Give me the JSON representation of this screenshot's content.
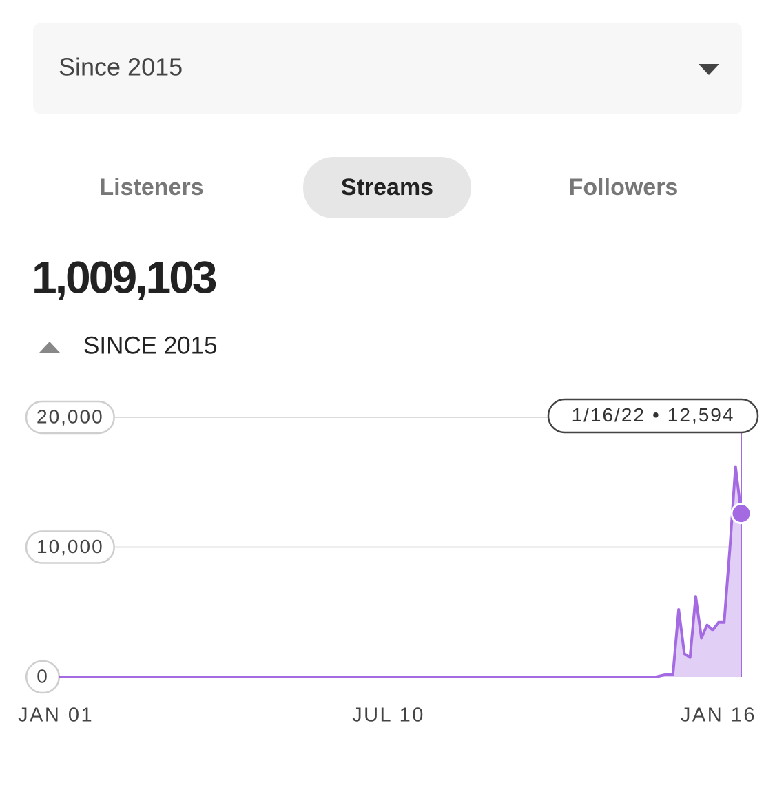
{
  "dropdown": {
    "label": "Since 2015"
  },
  "tabs": [
    "Listeners",
    "Streams",
    "Followers"
  ],
  "total": "1,009,103",
  "change_label": "SINCE 2015",
  "chart_data": {
    "type": "line",
    "color": "#a46ae2",
    "fill_color": "#e2cff6",
    "categories": [
      "JAN 01",
      null,
      null,
      null,
      null,
      null,
      null,
      null,
      null,
      null,
      null,
      null,
      null,
      null,
      null,
      null,
      null,
      null,
      null,
      null,
      null,
      null,
      null,
      null,
      null,
      null,
      null,
      null,
      null,
      null,
      null,
      null,
      null,
      null,
      null,
      null,
      null,
      null,
      null,
      null,
      null,
      null,
      null,
      null,
      null,
      null,
      null,
      null,
      null,
      null,
      null,
      null,
      null,
      null,
      null,
      null,
      null,
      null,
      "JUL 10",
      null,
      null,
      null,
      null,
      null,
      null,
      null,
      null,
      null,
      null,
      null,
      null,
      null,
      null,
      null,
      null,
      null,
      null,
      null,
      null,
      null,
      null,
      null,
      null,
      null,
      null,
      null,
      null,
      null,
      null,
      null,
      null,
      null,
      null,
      null,
      null,
      null,
      null,
      null,
      null,
      null,
      null,
      null,
      null,
      null,
      null,
      null,
      null,
      null,
      null,
      null,
      null,
      null,
      null,
      null,
      null,
      null,
      null,
      null,
      null,
      null,
      "JAN 16"
    ],
    "values": [
      0,
      0,
      0,
      0,
      0,
      0,
      0,
      0,
      0,
      0,
      0,
      0,
      0,
      0,
      0,
      0,
      0,
      0,
      0,
      0,
      0,
      0,
      0,
      0,
      0,
      0,
      0,
      0,
      0,
      0,
      0,
      0,
      0,
      0,
      0,
      0,
      0,
      0,
      0,
      0,
      0,
      0,
      0,
      0,
      0,
      0,
      0,
      0,
      0,
      0,
      0,
      0,
      0,
      0,
      0,
      0,
      0,
      0,
      0,
      0,
      0,
      0,
      0,
      0,
      0,
      0,
      0,
      0,
      0,
      0,
      0,
      0,
      0,
      0,
      0,
      0,
      0,
      0,
      0,
      0,
      0,
      0,
      0,
      0,
      0,
      0,
      0,
      0,
      0,
      0,
      0,
      0,
      0,
      0,
      0,
      0,
      0,
      0,
      0,
      0,
      0,
      0,
      0,
      0,
      0,
      0,
      100,
      200,
      200,
      5200,
      1800,
      1500,
      6200,
      3000,
      4000,
      3600,
      4200,
      4200,
      9900,
      16200,
      12594
    ],
    "ylim": [
      0,
      20000
    ],
    "yticks": [
      0,
      {
        "value": 10000,
        "label": "10,000"
      },
      {
        "value": 20000,
        "label": "20,000"
      }
    ],
    "grid": true,
    "tooltip": {
      "date": "1/16/22",
      "separator": "•",
      "value_label": "12,594"
    }
  }
}
